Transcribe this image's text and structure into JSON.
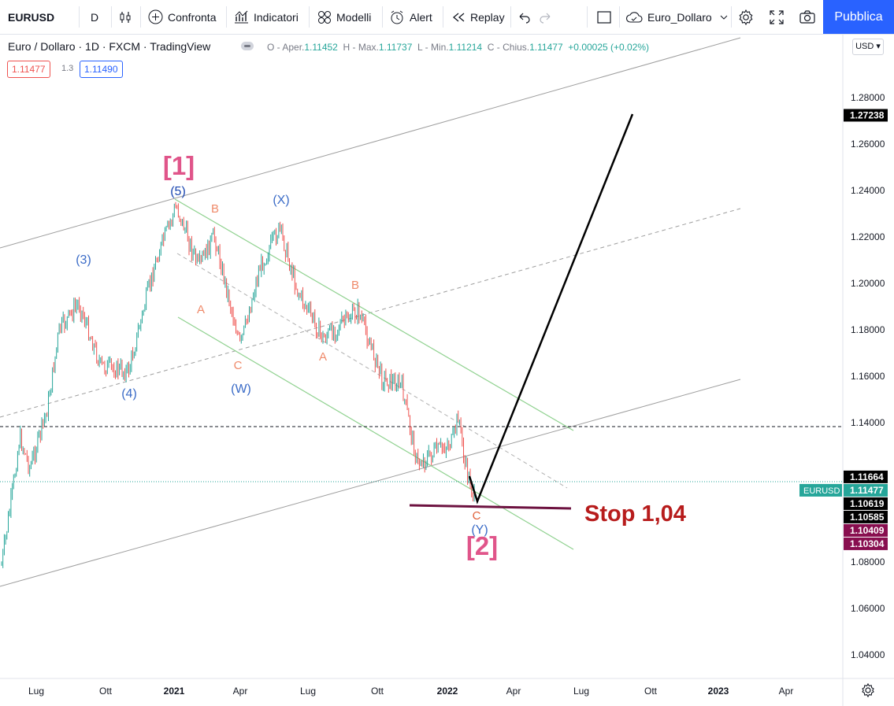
{
  "toolbar": {
    "symbol": "EURUSD",
    "interval": "D",
    "compare": "Confronta",
    "indicators": "Indicatori",
    "templates": "Modelli",
    "alert": "Alert",
    "replay": "Replay",
    "layout_name": "Euro_Dollaro",
    "publish": "Pubblica"
  },
  "legend": {
    "title": "Euro / Dollaro · 1D · FXCM · TradingView",
    "o_label": "O - Aper.",
    "o_value": "1.11452",
    "h_label": "H - Max.",
    "h_value": "1.11737",
    "l_label": "L - Min.",
    "l_value": "1.11214",
    "c_label": "C - Chius.",
    "c_value": "1.11477",
    "change": "+0.00025 (+0.02%)",
    "sell": "1.11477",
    "spread": "1.3",
    "buy": "1.11490"
  },
  "currency": "USD",
  "price_axis": {
    "ticks": [
      {
        "label": "1.28000",
        "v": 1.28
      },
      {
        "label": "1.26000",
        "v": 1.26
      },
      {
        "label": "1.24000",
        "v": 1.24
      },
      {
        "label": "1.22000",
        "v": 1.22
      },
      {
        "label": "1.20000",
        "v": 1.2
      },
      {
        "label": "1.18000",
        "v": 1.18
      },
      {
        "label": "1.16000",
        "v": 1.16
      },
      {
        "label": "1.14000",
        "v": 1.14
      },
      {
        "label": "1.08000",
        "v": 1.08
      },
      {
        "label": "1.06000",
        "v": 1.06
      },
      {
        "label": "1.04000",
        "v": 1.04
      }
    ],
    "badges": [
      {
        "label": "1.27238",
        "v": 1.27238,
        "bg": "#000000",
        "fg": "#ffffff"
      },
      {
        "label": "1.11664",
        "v": 1.11664,
        "bg": "#000000",
        "fg": "#ffffff"
      },
      {
        "label": "1.11477",
        "v": 1.11477,
        "bg": "#26a69a",
        "fg": "#ffffff",
        "tag": "EURUSD"
      },
      {
        "label": "1.10619",
        "v": 1.10619,
        "bg": "#000000",
        "fg": "#ffffff"
      },
      {
        "label": "1.10585",
        "v": 1.10585,
        "bg": "#000000",
        "fg": "#ffffff"
      },
      {
        "label": "1.10409",
        "v": 1.10409,
        "bg": "#880e4f",
        "fg": "#ffffff"
      },
      {
        "label": "1.10304",
        "v": 1.10304,
        "bg": "#880e4f",
        "fg": "#ffffff"
      }
    ]
  },
  "time_axis": [
    "Lug",
    "Ott",
    "2021",
    "Apr",
    "Lug",
    "Ott",
    "2022",
    "Apr",
    "Lug",
    "Ott",
    "2023",
    "Apr"
  ],
  "annotations": {
    "wave1": "[1]",
    "wave2": "[2]",
    "w5": "(5)",
    "w3": "(3)",
    "w4": "(4)",
    "wW": "(W)",
    "wX": "(X)",
    "wY": "(Y)",
    "a1": "A",
    "b1": "B",
    "c1": "C",
    "a2": "A",
    "b2": "B",
    "c2": "C",
    "stop": "Stop 1,04"
  },
  "colors": {
    "up": "#26a69a",
    "down": "#ef5350",
    "accent": "#2962ff",
    "wave_pink": "#e0558a",
    "wave_blue": "#3a6bc7",
    "abc_orange": "#ef8a6a",
    "channel_green": "#8fd18f",
    "stop_red": "#b71c1c",
    "stop_line": "#6d1240"
  }
}
